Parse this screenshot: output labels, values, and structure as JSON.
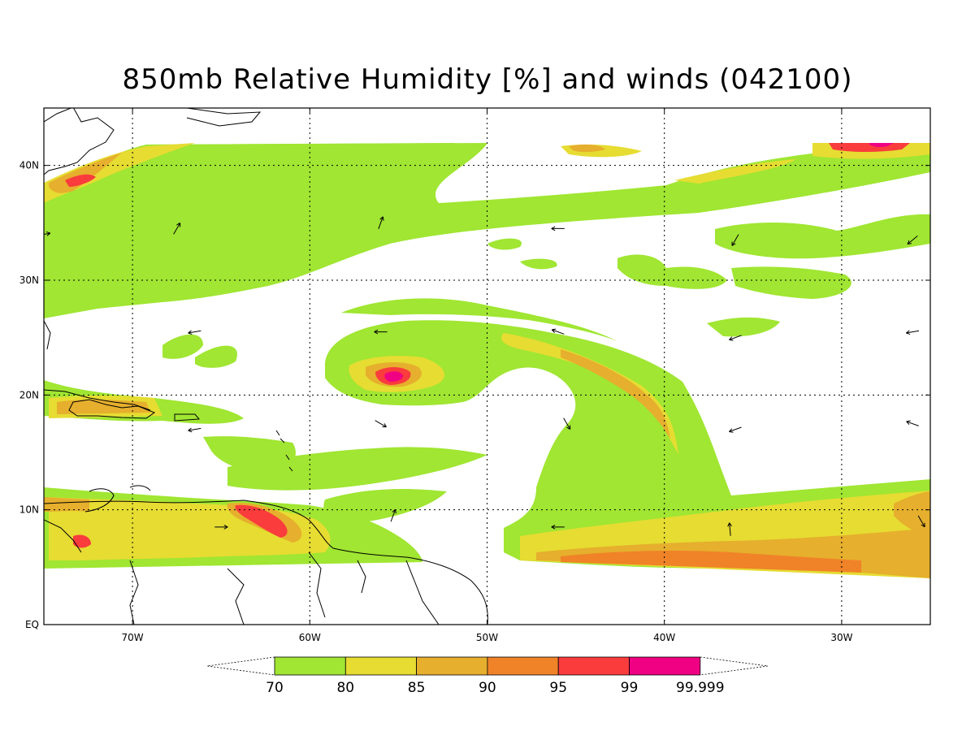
{
  "title": "850mb Relative Humidity [%] and winds (042100)",
  "map": {
    "lon_range": [
      -75,
      -25
    ],
    "lat_range": [
      0,
      45
    ],
    "x_ticks": [
      {
        "lon": -70,
        "label": "70W"
      },
      {
        "lon": -60,
        "label": "60W"
      },
      {
        "lon": -50,
        "label": "50W"
      },
      {
        "lon": -40,
        "label": "40W"
      },
      {
        "lon": -30,
        "label": "30W"
      }
    ],
    "y_ticks": [
      {
        "lat": 0,
        "label": "EQ"
      },
      {
        "lat": 10,
        "label": "10N"
      },
      {
        "lat": 20,
        "label": "20N"
      },
      {
        "lat": 30,
        "label": "30N"
      },
      {
        "lat": 40,
        "label": "40N"
      }
    ],
    "grid": "dotted",
    "features": [
      {
        "name": "humidity-center",
        "lon": -55.5,
        "lat": 21.5
      },
      {
        "name": "spiral-band",
        "lon": -45,
        "lat": 18
      },
      {
        "name": "itcz-band",
        "lon": -40,
        "lat": 8
      }
    ]
  },
  "colorbar": {
    "labels": [
      "70",
      "80",
      "85",
      "90",
      "95",
      "99",
      "99.999"
    ],
    "colors": [
      "#a0e632",
      "#e6dc32",
      "#e6af2d",
      "#f08228",
      "#fa3c3c",
      "#f00082"
    ]
  },
  "winds": [
    {
      "lon": -67.5,
      "lat": 34.5,
      "angle": 60
    },
    {
      "lon": -75,
      "lat": 34,
      "angle": 10
    },
    {
      "lon": -56,
      "lat": 35,
      "angle": 70
    },
    {
      "lon": -46,
      "lat": 34.5,
      "angle": 180
    },
    {
      "lon": -36,
      "lat": 33.5,
      "angle": 240
    },
    {
      "lon": -26,
      "lat": 33.5,
      "angle": 220
    },
    {
      "lon": -66.5,
      "lat": 25.5,
      "angle": 190
    },
    {
      "lon": -56,
      "lat": 25.5,
      "angle": 180
    },
    {
      "lon": -46,
      "lat": 25.5,
      "angle": 160
    },
    {
      "lon": -36,
      "lat": 25,
      "angle": 200
    },
    {
      "lon": -26,
      "lat": 25.5,
      "angle": 190
    },
    {
      "lon": -66.5,
      "lat": 17,
      "angle": 190
    },
    {
      "lon": -56,
      "lat": 17.5,
      "angle": 330
    },
    {
      "lon": -45.5,
      "lat": 17.5,
      "angle": 300
    },
    {
      "lon": -36,
      "lat": 17,
      "angle": 200
    },
    {
      "lon": -26,
      "lat": 17.5,
      "angle": 160
    },
    {
      "lon": -65,
      "lat": 8.5,
      "angle": 0
    },
    {
      "lon": -55.3,
      "lat": 9.5,
      "angle": 70
    },
    {
      "lon": -46,
      "lat": 8.5,
      "angle": 180
    },
    {
      "lon": -36.3,
      "lat": 8.3,
      "angle": 95
    },
    {
      "lon": -25.5,
      "lat": 9,
      "angle": 300
    }
  ]
}
